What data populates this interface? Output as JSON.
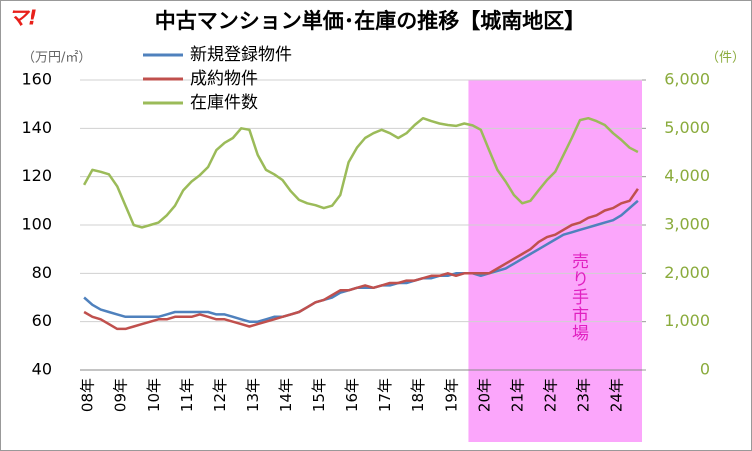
{
  "logo": "マ!",
  "chart_data": {
    "type": "line",
    "title": "中古マンション単価･在庫の推移【城南地区】",
    "ylabel": "（万円/㎡）",
    "y2label": "（件）",
    "categories": [
      "08年",
      null,
      null,
      null,
      "09年",
      null,
      null,
      null,
      "10年",
      null,
      null,
      null,
      "11年",
      null,
      null,
      null,
      "12年",
      null,
      null,
      null,
      "13年",
      null,
      null,
      null,
      "14年",
      null,
      null,
      null,
      "15年",
      null,
      null,
      null,
      "16年",
      null,
      null,
      null,
      "17年",
      null,
      null,
      null,
      "18年",
      null,
      null,
      null,
      "19年",
      null,
      null,
      null,
      "20年",
      null,
      null,
      null,
      "21年",
      null,
      null,
      null,
      "22年",
      null,
      null,
      null,
      "23年",
      null,
      null,
      null,
      "24年",
      null,
      null,
      null
    ],
    "series": [
      {
        "name": "新規登録物件",
        "color": "#4f81bd",
        "values": [
          70,
          67,
          65,
          64,
          63,
          62,
          62,
          62,
          62,
          62,
          63,
          64,
          64,
          64,
          64,
          64,
          63,
          63,
          62,
          61,
          60,
          60,
          61,
          62,
          62,
          63,
          64,
          66,
          68,
          69,
          70,
          72,
          73,
          74,
          74,
          74,
          75,
          75,
          76,
          76,
          77,
          78,
          78,
          79,
          79,
          80,
          80,
          80,
          79,
          80,
          81,
          82,
          84,
          86,
          88,
          90,
          92,
          94,
          96,
          97,
          98,
          99,
          100,
          101,
          102,
          104,
          107,
          110
        ]
      },
      {
        "name": "成約物件",
        "color": "#c0504d",
        "values": [
          64,
          62,
          61,
          59,
          57,
          57,
          58,
          59,
          60,
          61,
          61,
          62,
          62,
          62,
          63,
          62,
          61,
          61,
          60,
          59,
          58,
          59,
          60,
          61,
          62,
          63,
          64,
          66,
          68,
          69,
          71,
          73,
          73,
          74,
          75,
          74,
          75,
          76,
          76,
          77,
          77,
          78,
          79,
          79,
          80,
          79,
          80,
          80,
          80,
          80,
          82,
          84,
          86,
          88,
          90,
          93,
          95,
          96,
          98,
          100,
          101,
          103,
          104,
          106,
          107,
          109,
          110,
          115
        ]
      },
      {
        "name": "在庫件数",
        "color": "#9bbb59",
        "axis": "y2",
        "values": [
          3830,
          4140,
          4100,
          4050,
          3800,
          3400,
          3000,
          2950,
          3000,
          3050,
          3200,
          3400,
          3720,
          3900,
          4030,
          4200,
          4550,
          4700,
          4800,
          5000,
          4970,
          4450,
          4140,
          4050,
          3930,
          3700,
          3520,
          3450,
          3410,
          3350,
          3400,
          3620,
          4300,
          4600,
          4800,
          4900,
          4970,
          4900,
          4800,
          4900,
          5070,
          5210,
          5150,
          5100,
          5070,
          5050,
          5100,
          5060,
          4970,
          4550,
          4140,
          3900,
          3620,
          3450,
          3500,
          3720,
          3930,
          4100,
          4450,
          4800,
          5170,
          5210,
          5150,
          5070,
          4900,
          4760,
          4600,
          4510
        ]
      }
    ],
    "ylim": [
      40,
      160
    ],
    "yticks": [
      40,
      60,
      80,
      100,
      120,
      140,
      160
    ],
    "y2lim": [
      0,
      6000
    ],
    "y2ticks": [
      0,
      {
        "value": 1000,
        "label": "1,000"
      },
      {
        "value": 2000,
        "label": "2,000"
      },
      {
        "value": 3000,
        "label": "3,000"
      },
      {
        "value": 4000,
        "label": "4,000"
      },
      {
        "value": 5000,
        "label": "5,000"
      },
      {
        "value": 6000,
        "label": "6,000"
      }
    ],
    "grid": true,
    "highlight": {
      "label": "売り手市場",
      "start": 47,
      "color": "#fba6fb"
    }
  }
}
